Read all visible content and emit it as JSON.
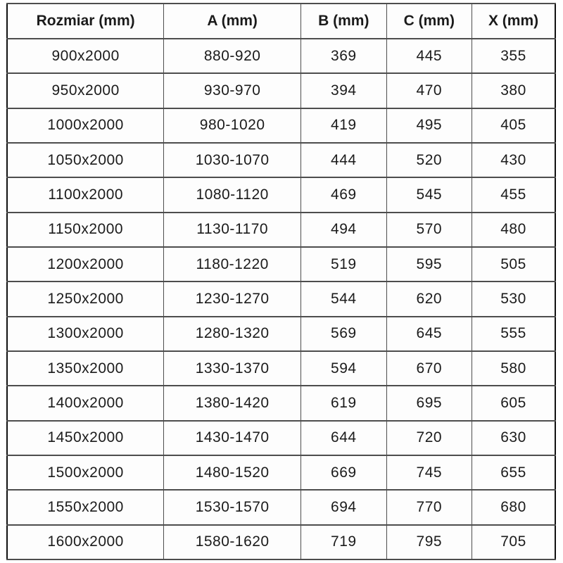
{
  "chart_data": {
    "type": "table",
    "title": "",
    "columns": [
      "Rozmiar (mm)",
      "A (mm)",
      "B (mm)",
      "C (mm)",
      "X (mm)"
    ],
    "rows": [
      [
        "900x2000",
        "880-920",
        "369",
        "445",
        "355"
      ],
      [
        "950x2000",
        "930-970",
        "394",
        "470",
        "380"
      ],
      [
        "1000x2000",
        "980-1020",
        "419",
        "495",
        "405"
      ],
      [
        "1050x2000",
        "1030-1070",
        "444",
        "520",
        "430"
      ],
      [
        "1100x2000",
        "1080-1120",
        "469",
        "545",
        "455"
      ],
      [
        "1150x2000",
        "1130-1170",
        "494",
        "570",
        "480"
      ],
      [
        "1200x2000",
        "1180-1220",
        "519",
        "595",
        "505"
      ],
      [
        "1250x2000",
        "1230-1270",
        "544",
        "620",
        "530"
      ],
      [
        "1300x2000",
        "1280-1320",
        "569",
        "645",
        "555"
      ],
      [
        "1350x2000",
        "1330-1370",
        "594",
        "670",
        "580"
      ],
      [
        "1400x2000",
        "1380-1420",
        "619",
        "695",
        "605"
      ],
      [
        "1450x2000",
        "1430-1470",
        "644",
        "720",
        "630"
      ],
      [
        "1500x2000",
        "1480-1520",
        "669",
        "745",
        "655"
      ],
      [
        "1550x2000",
        "1530-1570",
        "694",
        "770",
        "680"
      ],
      [
        "1600x2000",
        "1580-1620",
        "719",
        "795",
        "705"
      ]
    ],
    "layout": {
      "grid": true,
      "header_row_bold": true
    }
  },
  "colors": {
    "outer_border": "#111111",
    "inner_border": "#4d4d4d",
    "cell_background": "#fdfdfd",
    "text": "#1b1b1b"
  }
}
